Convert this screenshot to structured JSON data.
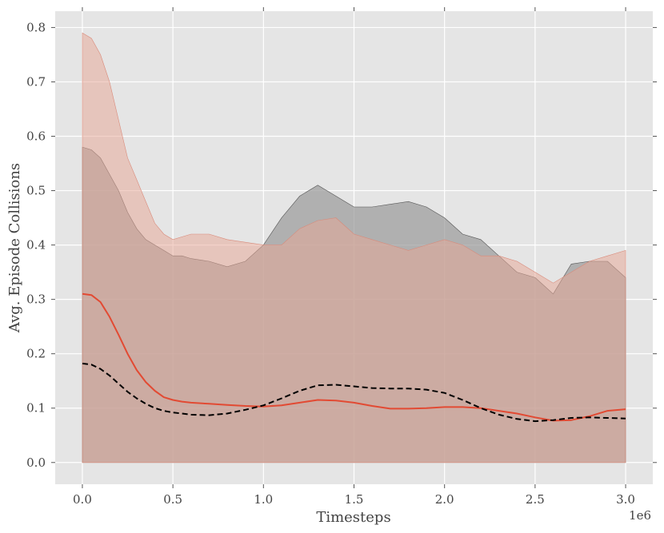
{
  "chart_data": {
    "type": "area",
    "title": "",
    "xlabel": "Timesteps",
    "ylabel": "Avg. Episode Collisions",
    "x_offset_label": "1e6",
    "xlim": [
      -0.15,
      3.15
    ],
    "ylim": [
      -0.04,
      0.83
    ],
    "x_ticks": [
      0.0,
      0.5,
      1.0,
      1.5,
      2.0,
      2.5,
      3.0
    ],
    "x_tick_labels": [
      "0.0",
      "0.5",
      "1.0",
      "1.5",
      "2.0",
      "2.5",
      "3.0"
    ],
    "y_ticks": [
      0.0,
      0.1,
      0.2,
      0.3,
      0.4,
      0.5,
      0.6,
      0.7,
      0.8
    ],
    "y_tick_labels": [
      "0.0",
      "0.1",
      "0.2",
      "0.3",
      "0.4",
      "0.5",
      "0.6",
      "0.7",
      "0.8"
    ],
    "grid": true,
    "background": "#e5e5e5",
    "series": [
      {
        "style": "solid",
        "color": "#e24a33",
        "band_color": "#e8a593",
        "x": [
          0.0,
          0.05,
          0.1,
          0.15,
          0.2,
          0.25,
          0.3,
          0.35,
          0.4,
          0.45,
          0.5,
          0.55,
          0.6,
          0.7,
          0.8,
          0.9,
          1.0,
          1.1,
          1.2,
          1.3,
          1.4,
          1.5,
          1.6,
          1.7,
          1.8,
          1.9,
          2.0,
          2.1,
          2.2,
          2.3,
          2.4,
          2.5,
          2.6,
          2.7,
          2.8,
          2.9,
          3.0
        ],
        "mean": [
          0.31,
          0.308,
          0.295,
          0.268,
          0.235,
          0.2,
          0.17,
          0.148,
          0.132,
          0.12,
          0.115,
          0.112,
          0.11,
          0.108,
          0.106,
          0.104,
          0.103,
          0.105,
          0.11,
          0.115,
          0.114,
          0.11,
          0.104,
          0.099,
          0.099,
          0.1,
          0.102,
          0.102,
          0.1,
          0.095,
          0.09,
          0.083,
          0.077,
          0.078,
          0.085,
          0.095,
          0.098
        ],
        "upper": [
          0.79,
          0.78,
          0.75,
          0.7,
          0.63,
          0.56,
          0.52,
          0.48,
          0.44,
          0.42,
          0.41,
          0.415,
          0.42,
          0.42,
          0.41,
          0.405,
          0.4,
          0.4,
          0.43,
          0.445,
          0.45,
          0.42,
          0.41,
          0.4,
          0.39,
          0.4,
          0.41,
          0.4,
          0.38,
          0.38,
          0.37,
          0.35,
          0.33,
          0.35,
          0.37,
          0.38,
          0.39
        ],
        "lower": [
          0.0,
          0.0,
          0.0,
          0.0,
          0.0,
          0.0,
          0.0,
          0.0,
          0.0,
          0.0,
          0.0,
          0.0,
          0.0,
          0.0,
          0.0,
          0.0,
          0.0,
          0.0,
          0.0,
          0.0,
          0.0,
          0.0,
          0.0,
          0.0,
          0.0,
          0.0,
          0.0,
          0.0,
          0.0,
          0.0,
          0.0,
          0.0,
          0.0,
          0.0,
          0.0,
          0.0,
          0.0
        ]
      },
      {
        "style": "dashed",
        "color": "#000000",
        "band_color": "#9a9a9a",
        "x": [
          0.0,
          0.05,
          0.1,
          0.15,
          0.2,
          0.25,
          0.3,
          0.35,
          0.4,
          0.45,
          0.5,
          0.55,
          0.6,
          0.7,
          0.8,
          0.9,
          1.0,
          1.1,
          1.2,
          1.3,
          1.4,
          1.5,
          1.6,
          1.7,
          1.8,
          1.9,
          2.0,
          2.1,
          2.2,
          2.3,
          2.4,
          2.5,
          2.6,
          2.7,
          2.8,
          2.9,
          3.0
        ],
        "mean": [
          0.182,
          0.18,
          0.172,
          0.16,
          0.145,
          0.13,
          0.118,
          0.108,
          0.1,
          0.095,
          0.092,
          0.09,
          0.088,
          0.087,
          0.09,
          0.097,
          0.105,
          0.118,
          0.132,
          0.142,
          0.143,
          0.14,
          0.137,
          0.136,
          0.136,
          0.134,
          0.128,
          0.115,
          0.1,
          0.088,
          0.08,
          0.076,
          0.078,
          0.082,
          0.083,
          0.082,
          0.081
        ],
        "upper": [
          0.58,
          0.575,
          0.56,
          0.53,
          0.5,
          0.46,
          0.43,
          0.41,
          0.4,
          0.39,
          0.38,
          0.38,
          0.375,
          0.37,
          0.36,
          0.37,
          0.4,
          0.45,
          0.49,
          0.51,
          0.49,
          0.47,
          0.47,
          0.475,
          0.48,
          0.47,
          0.45,
          0.42,
          0.41,
          0.38,
          0.35,
          0.34,
          0.31,
          0.365,
          0.37,
          0.37,
          0.34
        ],
        "lower": [
          0.0,
          0.0,
          0.0,
          0.0,
          0.0,
          0.0,
          0.0,
          0.0,
          0.0,
          0.0,
          0.0,
          0.0,
          0.0,
          0.0,
          0.0,
          0.0,
          0.0,
          0.0,
          0.0,
          0.0,
          0.0,
          0.0,
          0.0,
          0.0,
          0.0,
          0.0,
          0.0,
          0.0,
          0.0,
          0.0,
          0.0,
          0.0,
          0.0,
          0.0,
          0.0,
          0.0,
          0.0
        ]
      }
    ]
  }
}
